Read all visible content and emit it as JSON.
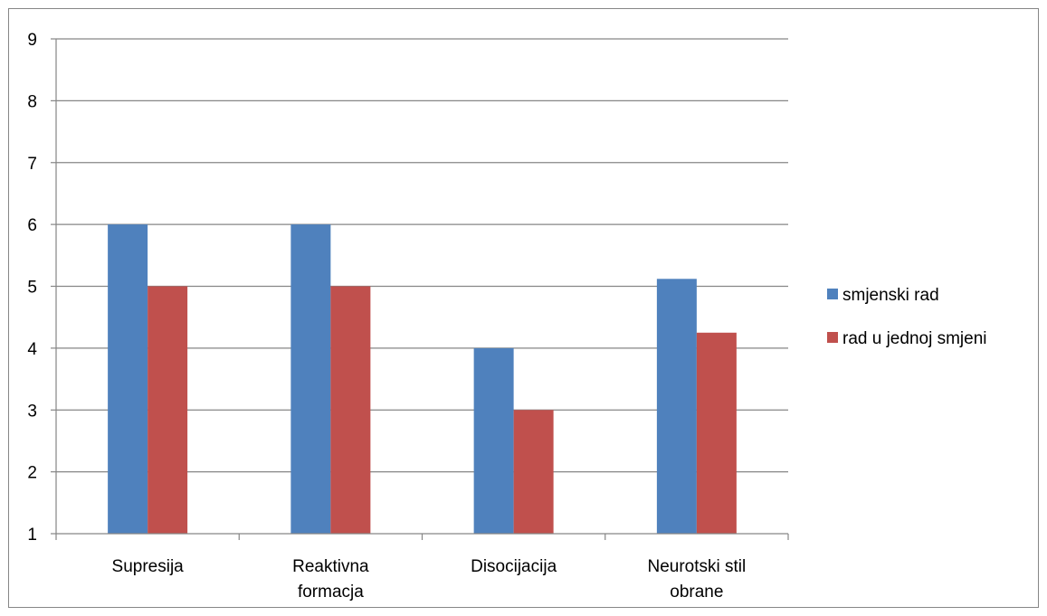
{
  "chart_data": {
    "type": "bar",
    "categories": [
      [
        "Supresija"
      ],
      [
        "Reaktivna",
        "formacja"
      ],
      [
        "Disocijacija"
      ],
      [
        "Neurotski stil",
        "obrane"
      ]
    ],
    "series": [
      {
        "name": "smjenski rad",
        "values": [
          6,
          6,
          4,
          5.12
        ],
        "color": "#4f81bd"
      },
      {
        "name": "rad u jednoj smjeni",
        "values": [
          5,
          5,
          3,
          4.25
        ],
        "color": "#c0504d"
      }
    ],
    "ylim": [
      1,
      9
    ],
    "yticks": [
      1,
      2,
      3,
      4,
      5,
      6,
      7,
      8,
      9
    ],
    "grid": true,
    "legend_position": "right",
    "title": "",
    "xlabel": "",
    "ylabel": ""
  }
}
